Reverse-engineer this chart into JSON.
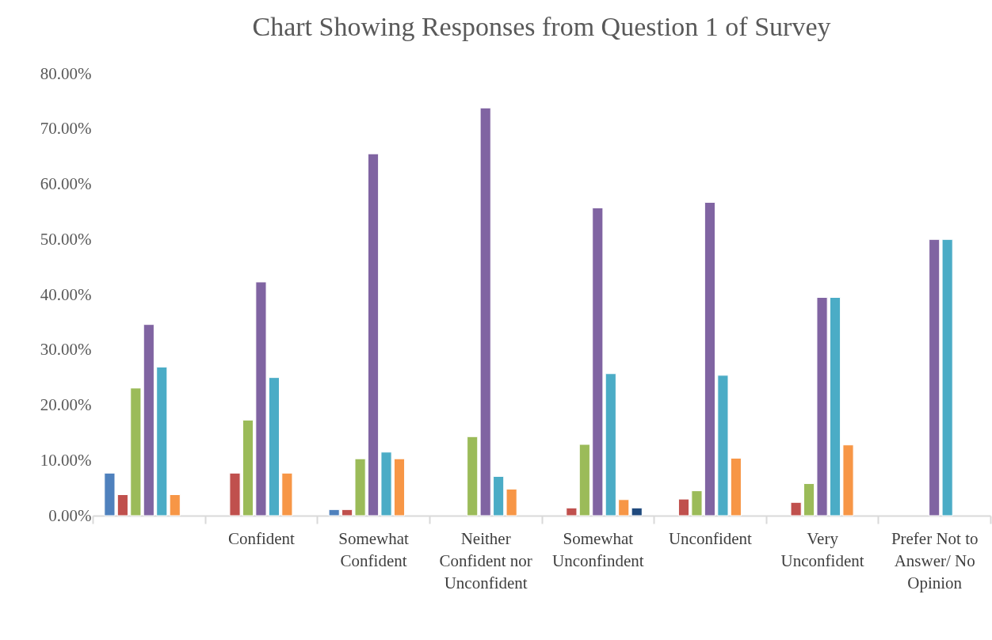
{
  "chart_data": {
    "type": "bar",
    "title": "Chart Showing Responses from Question 1 of Survey",
    "categories": [
      null,
      "Confident",
      "Somewhat Confident",
      "Neither Confident nor Unconfident",
      "Somewhat Unconfindent",
      "Unconfident",
      "Very Unconfident",
      "Prefer Not to Answer/ No Opinion"
    ],
    "series": [
      {
        "color": "#4f81bd",
        "values": [
          7.7,
          null,
          1.1,
          null,
          null,
          null,
          null,
          null
        ]
      },
      {
        "color": "#c0504d",
        "values": [
          3.8,
          7.7,
          1.1,
          null,
          1.4,
          3.0,
          2.4,
          null
        ]
      },
      {
        "color": "#9bbb59",
        "values": [
          23.1,
          17.3,
          10.3,
          14.3,
          12.9,
          4.5,
          5.8,
          null
        ]
      },
      {
        "color": "#8064a2",
        "values": [
          34.6,
          42.3,
          65.5,
          73.8,
          55.7,
          56.7,
          39.5,
          50.0
        ]
      },
      {
        "color": "#4bacc6",
        "values": [
          26.9,
          25.0,
          11.5,
          7.1,
          25.7,
          25.4,
          39.5,
          50.0
        ]
      },
      {
        "color": "#f79646",
        "values": [
          3.8,
          7.7,
          10.3,
          4.8,
          2.9,
          10.4,
          12.8,
          null
        ]
      },
      {
        "color": "#1f497d",
        "values": [
          null,
          null,
          null,
          null,
          1.4,
          null,
          null,
          null
        ]
      }
    ],
    "ylim": [
      0,
      80
    ],
    "yticks": [
      {
        "value": 0,
        "label": "0.00%"
      },
      {
        "value": 10,
        "label": "10.00%"
      },
      {
        "value": 20,
        "label": "20.00%"
      },
      {
        "value": 30,
        "label": "30.00%"
      },
      {
        "value": 40,
        "label": "40.00%"
      },
      {
        "value": 50,
        "label": "50.00%"
      },
      {
        "value": 60,
        "label": "60.00%"
      },
      {
        "value": 70,
        "label": "70.00%"
      },
      {
        "value": 80,
        "label": "80.00%"
      }
    ],
    "grid": false,
    "legend": false
  }
}
